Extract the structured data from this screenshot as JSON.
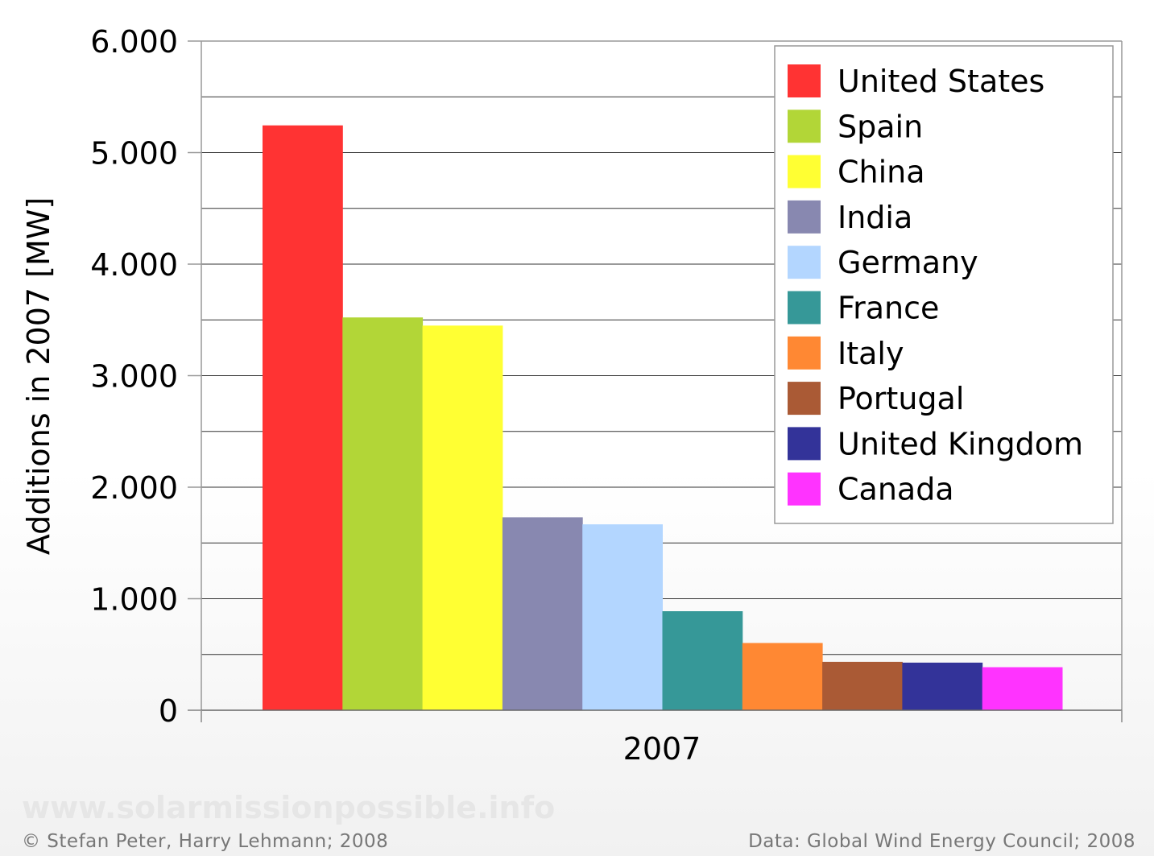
{
  "chart_data": {
    "type": "bar",
    "title": "",
    "xlabel": "",
    "ylabel": "Additions in 2007 [MW]",
    "categories": [
      "2007"
    ],
    "ylim": [
      0,
      6000
    ],
    "y_ticks": [
      0,
      1000,
      2000,
      3000,
      4000,
      5000,
      6000
    ],
    "y_tick_labels": [
      "0",
      "1.000",
      "2.000",
      "3.000",
      "4.000",
      "5.000",
      "6.000"
    ],
    "grid": true,
    "legend_position": "top-right",
    "series": [
      {
        "name": "United States",
        "values": [
          5244
        ],
        "color": "#ff3333"
      },
      {
        "name": "Spain",
        "values": [
          3522
        ],
        "color": "#b2d637"
      },
      {
        "name": "China",
        "values": [
          3449
        ],
        "color": "#ffff33"
      },
      {
        "name": "India",
        "values": [
          1730
        ],
        "color": "#8888b0"
      },
      {
        "name": "Germany",
        "values": [
          1667
        ],
        "color": "#b3d6ff"
      },
      {
        "name": "France",
        "values": [
          888
        ],
        "color": "#369898"
      },
      {
        "name": "Italy",
        "values": [
          603
        ],
        "color": "#ff8833"
      },
      {
        "name": "Portugal",
        "values": [
          434
        ],
        "color": "#aa5a35"
      },
      {
        "name": "United Kingdom",
        "values": [
          427
        ],
        "color": "#333399"
      },
      {
        "name": "Canada",
        "values": [
          386
        ],
        "color": "#ff33ff"
      }
    ]
  },
  "footer": {
    "website": "www.solarmissionpossible.info",
    "copyright": "© Stefan Peter, Harry Lehmann; 2008",
    "source": "Data: Global Wind Energy Council; 2008"
  }
}
